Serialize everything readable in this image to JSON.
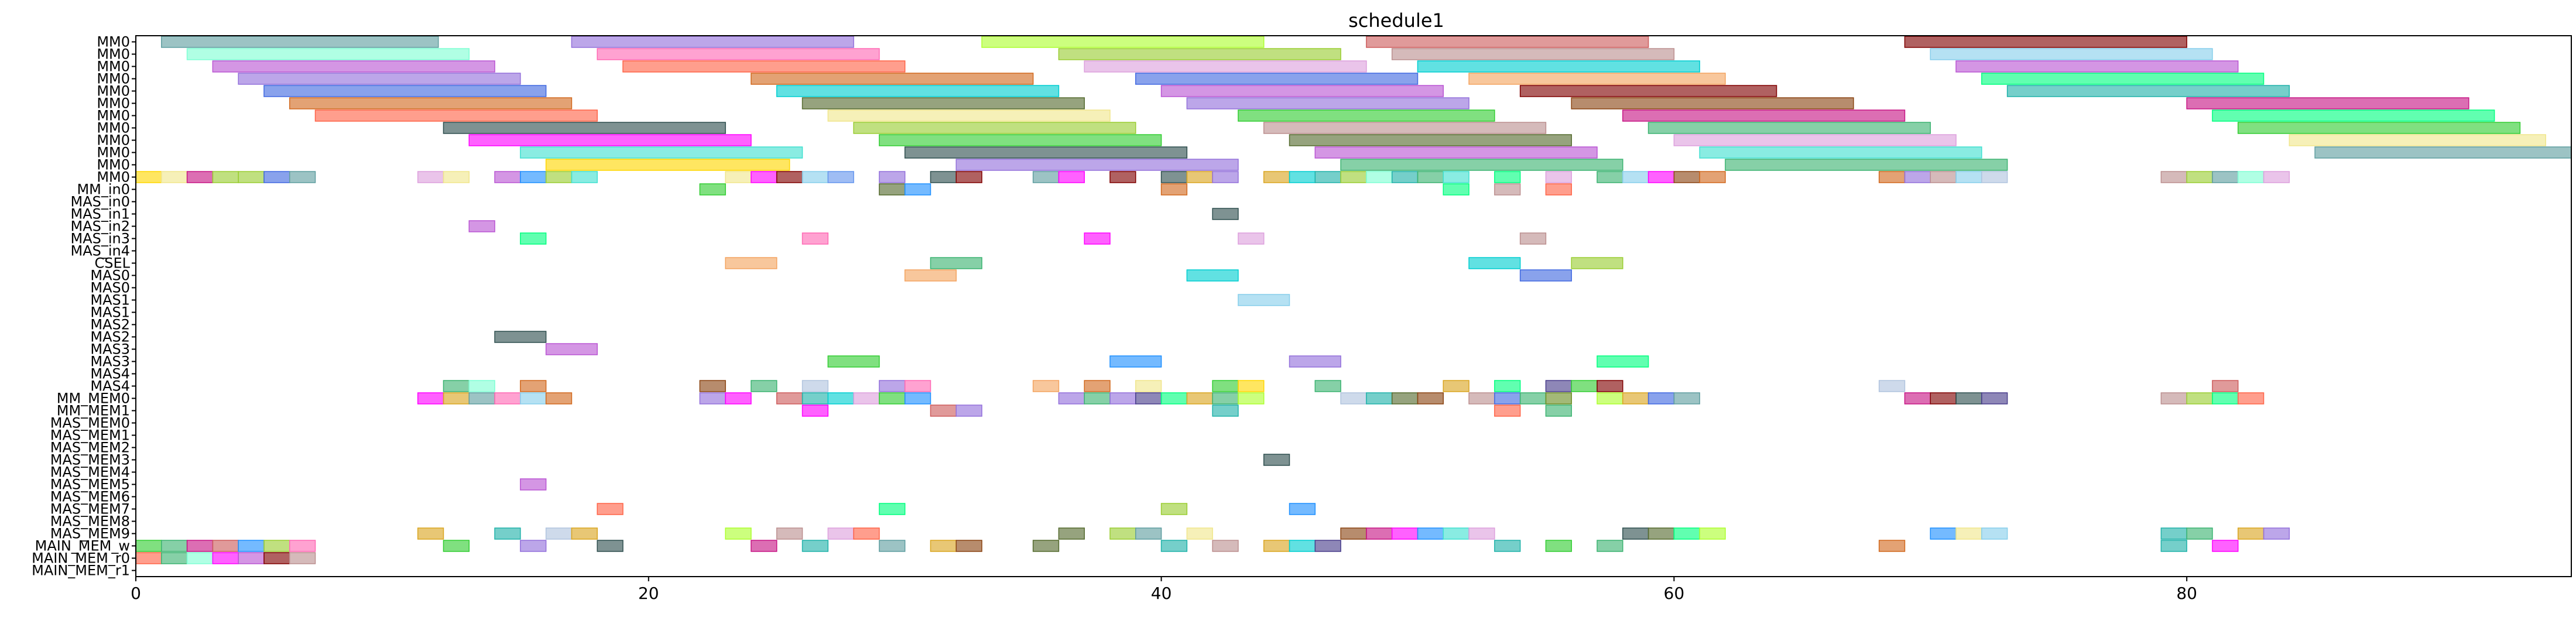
{
  "chart_data": {
    "type": "gantt",
    "title": "schedule1",
    "xlim": [
      0,
      95
    ],
    "xticks": [
      0,
      20,
      40,
      60,
      80
    ],
    "rows": [
      "MM0",
      "MM0",
      "MM0",
      "MM0",
      "MM0",
      "MM0",
      "MM0",
      "MM0",
      "MM0",
      "MM0",
      "MM0",
      "MM0",
      "MM_in0",
      "MAS_in0",
      "MAS_in1",
      "MAS_in2",
      "MAS_in3",
      "MAS_in4",
      "CSEL",
      "MAS0",
      "MAS0",
      "MAS1",
      "MAS1",
      "MAS2",
      "MAS2",
      "MAS3",
      "MAS3",
      "MAS4",
      "MAS4",
      "MM_MEM0",
      "MM_MEM1",
      "MAS_MEM0",
      "MAS_MEM1",
      "MAS_MEM2",
      "MAS_MEM3",
      "MAS_MEM4",
      "MAS_MEM5",
      "MAS_MEM6",
      "MAS_MEM7",
      "MAS_MEM8",
      "MAS_MEM9",
      "MAIN_MEM_w",
      "MAIN_MEM_r0",
      "MAIN_MEM_r1"
    ],
    "palette": [
      "#5f9ea0",
      "#9370db",
      "#adff2f",
      "#cd5c5c",
      "#ba55d3",
      "#ff69b4",
      "#87ceeb",
      "#3cb371",
      "#d2691e",
      "#00ced1",
      "#ff6347",
      "#6b8e23",
      "#4169e1",
      "#ff00ff",
      "#00ff7f",
      "#2f4f4f",
      "#1e90ff",
      "#bc8f8f",
      "#9acd32",
      "#dda0dd",
      "#800000",
      "#daa520",
      "#7fffd4",
      "#556b2f",
      "#b0c4de",
      "#ffd700",
      "#20b2aa",
      "#ff7f50",
      "#8b4513",
      "#32cd32",
      "#6495ed",
      "#c71585",
      "#40e0d0",
      "#f4a460",
      "#483d8b",
      "#f0e68c"
    ],
    "bars": [
      [
        0,
        1,
        11.8,
        0
      ],
      [
        0,
        17,
        28,
        1
      ],
      [
        0,
        33,
        44,
        2
      ],
      [
        0,
        48,
        59,
        3
      ],
      [
        0,
        69,
        80,
        20
      ],
      [
        1,
        2,
        13,
        22
      ],
      [
        1,
        18,
        29,
        5
      ],
      [
        1,
        36,
        47,
        18
      ],
      [
        1,
        49,
        60,
        17
      ],
      [
        1,
        70,
        81,
        6
      ],
      [
        2,
        3,
        14,
        4
      ],
      [
        2,
        19,
        30,
        10
      ],
      [
        2,
        37,
        48,
        19
      ],
      [
        2,
        50,
        61,
        9
      ],
      [
        2,
        71,
        82,
        4
      ],
      [
        3,
        4,
        15,
        1
      ],
      [
        3,
        24,
        35,
        8
      ],
      [
        3,
        39,
        50,
        12
      ],
      [
        3,
        52,
        62,
        33
      ],
      [
        3,
        72,
        83,
        14
      ],
      [
        4,
        5,
        16,
        12
      ],
      [
        4,
        25,
        36,
        9
      ],
      [
        4,
        40,
        51,
        4
      ],
      [
        4,
        54,
        64,
        20
      ],
      [
        4,
        73,
        84,
        26
      ],
      [
        5,
        6,
        17,
        8
      ],
      [
        5,
        26,
        37,
        23
      ],
      [
        5,
        41,
        52,
        1
      ],
      [
        5,
        56,
        67,
        28
      ],
      [
        5,
        80,
        91,
        31
      ],
      [
        6,
        7,
        18,
        10
      ],
      [
        6,
        27,
        38,
        35
      ],
      [
        6,
        43,
        53,
        29
      ],
      [
        6,
        58,
        69,
        31
      ],
      [
        6,
        81,
        92,
        14
      ],
      [
        7,
        12,
        23,
        15
      ],
      [
        7,
        28,
        39,
        18
      ],
      [
        7,
        44,
        55,
        17
      ],
      [
        7,
        59,
        70,
        7
      ],
      [
        7,
        82,
        93,
        29
      ],
      [
        8,
        13,
        24,
        13
      ],
      [
        8,
        29,
        40,
        29
      ],
      [
        8,
        45,
        56,
        23
      ],
      [
        8,
        60,
        71,
        19
      ],
      [
        8,
        84,
        94,
        35
      ],
      [
        9,
        15,
        26,
        32
      ],
      [
        9,
        30,
        41,
        15
      ],
      [
        9,
        46,
        57,
        4
      ],
      [
        9,
        61,
        72,
        32
      ],
      [
        9,
        85,
        95,
        0
      ],
      [
        10,
        16,
        25.5,
        25
      ],
      [
        10,
        32,
        43,
        1
      ],
      [
        10,
        47,
        58,
        7
      ],
      [
        10,
        62,
        73,
        7
      ],
      [
        11,
        0,
        1,
        25
      ],
      [
        11,
        1,
        2,
        35
      ],
      [
        11,
        2,
        3,
        31
      ],
      [
        11,
        3,
        4,
        18
      ],
      [
        11,
        4,
        5,
        18
      ],
      [
        11,
        5,
        6,
        12
      ],
      [
        11,
        6,
        7,
        0
      ],
      [
        11,
        11,
        12,
        19
      ],
      [
        11,
        12,
        13,
        35
      ],
      [
        11,
        14,
        15,
        4
      ],
      [
        11,
        15,
        16,
        16
      ],
      [
        11,
        16,
        17,
        18
      ],
      [
        11,
        17,
        18,
        32
      ],
      [
        11,
        23,
        24,
        35
      ],
      [
        11,
        24,
        25,
        13
      ],
      [
        11,
        25,
        26,
        20
      ],
      [
        11,
        26,
        27,
        6
      ],
      [
        11,
        27,
        28,
        30
      ],
      [
        11,
        29,
        30,
        1
      ],
      [
        11,
        31,
        32,
        15
      ],
      [
        11,
        32,
        33,
        20
      ],
      [
        11,
        35,
        36,
        0
      ],
      [
        11,
        36,
        37,
        13
      ],
      [
        11,
        38,
        39,
        20
      ],
      [
        11,
        40,
        41,
        15
      ],
      [
        11,
        41,
        42,
        21
      ],
      [
        11,
        42,
        43,
        1
      ],
      [
        11,
        44,
        45,
        21
      ],
      [
        11,
        45,
        46,
        9
      ],
      [
        11,
        46,
        47,
        26
      ],
      [
        11,
        47,
        48,
        18
      ],
      [
        11,
        48,
        49,
        22
      ],
      [
        11,
        49,
        50,
        26
      ],
      [
        11,
        50,
        51,
        7
      ],
      [
        11,
        51,
        52,
        32
      ],
      [
        11,
        53,
        54,
        14
      ],
      [
        11,
        55,
        56,
        19
      ],
      [
        11,
        57,
        58,
        7
      ],
      [
        11,
        58,
        59,
        6
      ],
      [
        11,
        59,
        60,
        13
      ],
      [
        11,
        60,
        61,
        28
      ],
      [
        11,
        61,
        62,
        8
      ],
      [
        11,
        68,
        69,
        8
      ],
      [
        11,
        69,
        70,
        1
      ],
      [
        11,
        70,
        71,
        17
      ],
      [
        11,
        71,
        72,
        6
      ],
      [
        11,
        72,
        73,
        24
      ],
      [
        11,
        79,
        80,
        17
      ],
      [
        11,
        80,
        81,
        18
      ],
      [
        11,
        81,
        82,
        0
      ],
      [
        11,
        82,
        83,
        22
      ],
      [
        11,
        83,
        84,
        19
      ],
      [
        12,
        22,
        23,
        29
      ],
      [
        12,
        29,
        30,
        23
      ],
      [
        12,
        30,
        31,
        16
      ],
      [
        12,
        40,
        41,
        8
      ],
      [
        12,
        51,
        52,
        14
      ],
      [
        12,
        53,
        54,
        17
      ],
      [
        12,
        55,
        56,
        10
      ],
      [
        14,
        42,
        43,
        15
      ],
      [
        15,
        13,
        14,
        4
      ],
      [
        16,
        15,
        16,
        14
      ],
      [
        16,
        26,
        27,
        5
      ],
      [
        16,
        37,
        38,
        13
      ],
      [
        16,
        43,
        44,
        19
      ],
      [
        16,
        54,
        55,
        17
      ],
      [
        18,
        23,
        25,
        33
      ],
      [
        18,
        31,
        33,
        7
      ],
      [
        18,
        52,
        54,
        9
      ],
      [
        18,
        56,
        58,
        18
      ],
      [
        19,
        30,
        32,
        33
      ],
      [
        19,
        41,
        43,
        9
      ],
      [
        19,
        54,
        56,
        12
      ],
      [
        21,
        43,
        45,
        6
      ],
      [
        24,
        14,
        16,
        15
      ],
      [
        25,
        16,
        18,
        4
      ],
      [
        26,
        27,
        29,
        29
      ],
      [
        26,
        38,
        40,
        16
      ],
      [
        26,
        45,
        47,
        1
      ],
      [
        26,
        57,
        59,
        14
      ],
      [
        28,
        12,
        13,
        7
      ],
      [
        28,
        13,
        14,
        22
      ],
      [
        28,
        15,
        16,
        8
      ],
      [
        28,
        22,
        23,
        28
      ],
      [
        28,
        24,
        25,
        7
      ],
      [
        28,
        26,
        27,
        24
      ],
      [
        28,
        29,
        30,
        1
      ],
      [
        28,
        30,
        31,
        5
      ],
      [
        28,
        35,
        36,
        33
      ],
      [
        28,
        37,
        38,
        8
      ],
      [
        28,
        39,
        40,
        35
      ],
      [
        28,
        42,
        43,
        29
      ],
      [
        28,
        43,
        44,
        25
      ],
      [
        28,
        46,
        47,
        7
      ],
      [
        28,
        51,
        52,
        21
      ],
      [
        28,
        53,
        54,
        14
      ],
      [
        28,
        55,
        56,
        34
      ],
      [
        28,
        56,
        57,
        29
      ],
      [
        28,
        57,
        58,
        20
      ],
      [
        28,
        68,
        69,
        24
      ],
      [
        28,
        81,
        82,
        3
      ],
      [
        29,
        11,
        12,
        13
      ],
      [
        29,
        12,
        13,
        21
      ],
      [
        29,
        13,
        14,
        0
      ],
      [
        29,
        14,
        15,
        5
      ],
      [
        29,
        15,
        16,
        6
      ],
      [
        29,
        16,
        17,
        8
      ],
      [
        29,
        22,
        23,
        1
      ],
      [
        29,
        23,
        24,
        13
      ],
      [
        29,
        25,
        26,
        3
      ],
      [
        29,
        26,
        27,
        26
      ],
      [
        29,
        27,
        28,
        9
      ],
      [
        29,
        28,
        29,
        19
      ],
      [
        29,
        29,
        30,
        29
      ],
      [
        29,
        30,
        31,
        16
      ],
      [
        29,
        36,
        37,
        1
      ],
      [
        29,
        37,
        38,
        7
      ],
      [
        29,
        38,
        39,
        1
      ],
      [
        29,
        39,
        40,
        34
      ],
      [
        29,
        40,
        41,
        14
      ],
      [
        29,
        41,
        42,
        21
      ],
      [
        29,
        42,
        43,
        7
      ],
      [
        29,
        43,
        44,
        2
      ],
      [
        29,
        47,
        48,
        24
      ],
      [
        29,
        48,
        49,
        26
      ],
      [
        29,
        49,
        50,
        23
      ],
      [
        29,
        50,
        51,
        28
      ],
      [
        29,
        52,
        53,
        17
      ],
      [
        29,
        53,
        54,
        12
      ],
      [
        29,
        54,
        55,
        7
      ],
      [
        29,
        55,
        56,
        11
      ],
      [
        29,
        57,
        58,
        2
      ],
      [
        29,
        58,
        59,
        21
      ],
      [
        29,
        59,
        60,
        12
      ],
      [
        29,
        60,
        61,
        0
      ],
      [
        29,
        69,
        70,
        31
      ],
      [
        29,
        70,
        71,
        20
      ],
      [
        29,
        71,
        72,
        15
      ],
      [
        29,
        72,
        73,
        34
      ],
      [
        29,
        79,
        80,
        17
      ],
      [
        29,
        80,
        81,
        18
      ],
      [
        29,
        81,
        82,
        14
      ],
      [
        29,
        82,
        83,
        10
      ],
      [
        30,
        26,
        27,
        13
      ],
      [
        30,
        31,
        32,
        3
      ],
      [
        30,
        32,
        33,
        1
      ],
      [
        30,
        42,
        43,
        26
      ],
      [
        30,
        53,
        54,
        10
      ],
      [
        30,
        55,
        56,
        7
      ],
      [
        34,
        44,
        45,
        15
      ],
      [
        36,
        15,
        16,
        4
      ],
      [
        38,
        18,
        19,
        10
      ],
      [
        38,
        29,
        30,
        14
      ],
      [
        38,
        40,
        41,
        18
      ],
      [
        38,
        45,
        46,
        16
      ],
      [
        40,
        11,
        12,
        21
      ],
      [
        40,
        14,
        15,
        26
      ],
      [
        40,
        16,
        17,
        24
      ],
      [
        40,
        17,
        18,
        21
      ],
      [
        40,
        23,
        24,
        2
      ],
      [
        40,
        25,
        26,
        17
      ],
      [
        40,
        27,
        28,
        19
      ],
      [
        40,
        28,
        29,
        10
      ],
      [
        40,
        36,
        37,
        23
      ],
      [
        40,
        38,
        39,
        18
      ],
      [
        40,
        39,
        40,
        0
      ],
      [
        40,
        41,
        42,
        35
      ],
      [
        40,
        47,
        48,
        28
      ],
      [
        40,
        48,
        49,
        31
      ],
      [
        40,
        49,
        50,
        13
      ],
      [
        40,
        50,
        51,
        16
      ],
      [
        40,
        51,
        52,
        32
      ],
      [
        40,
        52,
        53,
        19
      ],
      [
        40,
        58,
        59,
        15
      ],
      [
        40,
        59,
        60,
        23
      ],
      [
        40,
        60,
        61,
        14
      ],
      [
        40,
        61,
        62,
        2
      ],
      [
        40,
        70,
        71,
        16
      ],
      [
        40,
        71,
        72,
        35
      ],
      [
        40,
        72,
        73,
        6
      ],
      [
        40,
        79,
        80,
        26
      ],
      [
        40,
        80,
        81,
        7
      ],
      [
        40,
        82,
        83,
        21
      ],
      [
        40,
        83,
        84,
        1
      ],
      [
        41,
        0,
        1,
        29
      ],
      [
        41,
        1,
        2,
        7
      ],
      [
        41,
        2,
        3,
        31
      ],
      [
        41,
        3,
        4,
        3
      ],
      [
        41,
        4,
        5,
        16
      ],
      [
        41,
        5,
        6,
        18
      ],
      [
        41,
        6,
        7,
        5
      ],
      [
        41,
        12,
        13,
        29
      ],
      [
        41,
        15,
        16,
        1
      ],
      [
        41,
        18,
        19,
        15
      ],
      [
        41,
        24,
        25,
        31
      ],
      [
        41,
        26,
        27,
        26
      ],
      [
        41,
        29,
        30,
        0
      ],
      [
        41,
        31,
        32,
        21
      ],
      [
        41,
        32,
        33,
        28
      ],
      [
        41,
        35,
        36,
        23
      ],
      [
        41,
        40,
        41,
        26
      ],
      [
        41,
        42,
        43,
        17
      ],
      [
        41,
        44,
        45,
        21
      ],
      [
        41,
        45,
        46,
        9
      ],
      [
        41,
        46,
        47,
        34
      ],
      [
        41,
        53,
        54,
        26
      ],
      [
        41,
        55,
        56,
        29
      ],
      [
        41,
        57,
        58,
        7
      ],
      [
        41,
        68,
        69,
        8
      ],
      [
        41,
        79,
        80,
        26
      ],
      [
        41,
        81,
        82,
        13
      ],
      [
        42,
        0,
        1,
        10
      ],
      [
        42,
        1,
        2,
        7
      ],
      [
        42,
        2,
        3,
        22
      ],
      [
        42,
        3,
        4,
        13
      ],
      [
        42,
        4,
        5,
        4
      ],
      [
        42,
        5,
        6,
        20
      ],
      [
        42,
        6,
        7,
        17
      ]
    ]
  }
}
